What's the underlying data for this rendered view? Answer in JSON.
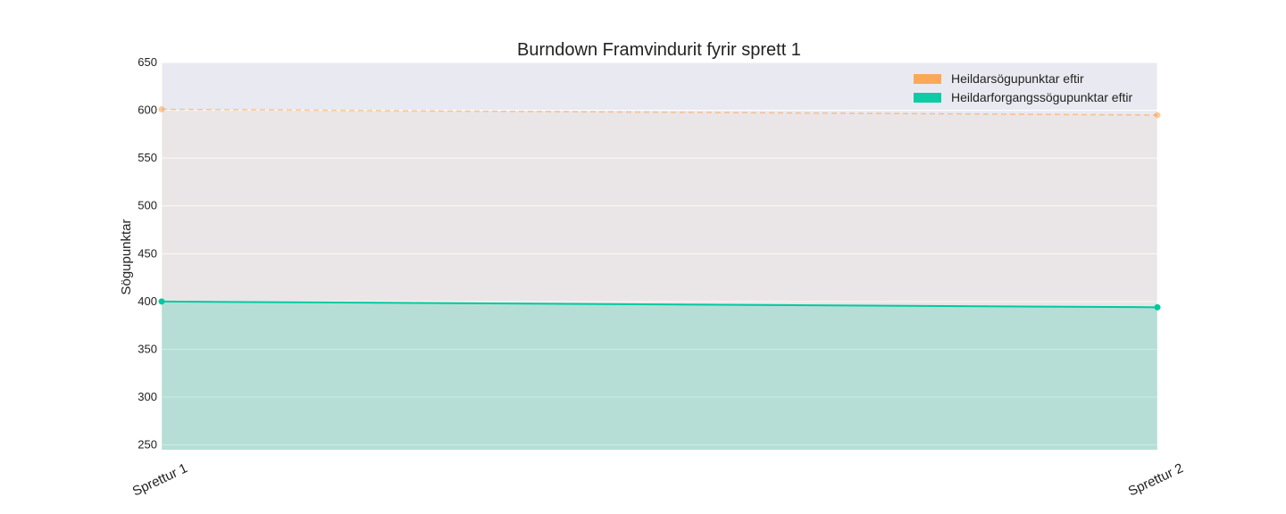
{
  "chart_data": {
    "type": "area",
    "title": "Burndown Framvindurit fyrir sprett 1",
    "xlabel": "",
    "ylabel": "Sögupunktar",
    "categories": [
      "Sprettur 1",
      "Sprettur 2"
    ],
    "ylim": [
      245,
      650
    ],
    "yticks": [
      250,
      300,
      350,
      400,
      450,
      500,
      550,
      600,
      650
    ],
    "grid": true,
    "legend_position": "top-right",
    "series": [
      {
        "name": "Heildarsögupunktar eftir",
        "values": [
          601,
          595
        ],
        "color": "#FF9933",
        "line_style": "dashed"
      },
      {
        "name": "Heildarforgangssögupunktar eftir",
        "values": [
          400,
          394
        ],
        "color": "#00C9A0",
        "line_style": "solid"
      }
    ]
  },
  "colors": {
    "plot_background": "#E9E9F1",
    "grid": "#FFFFFF"
  }
}
